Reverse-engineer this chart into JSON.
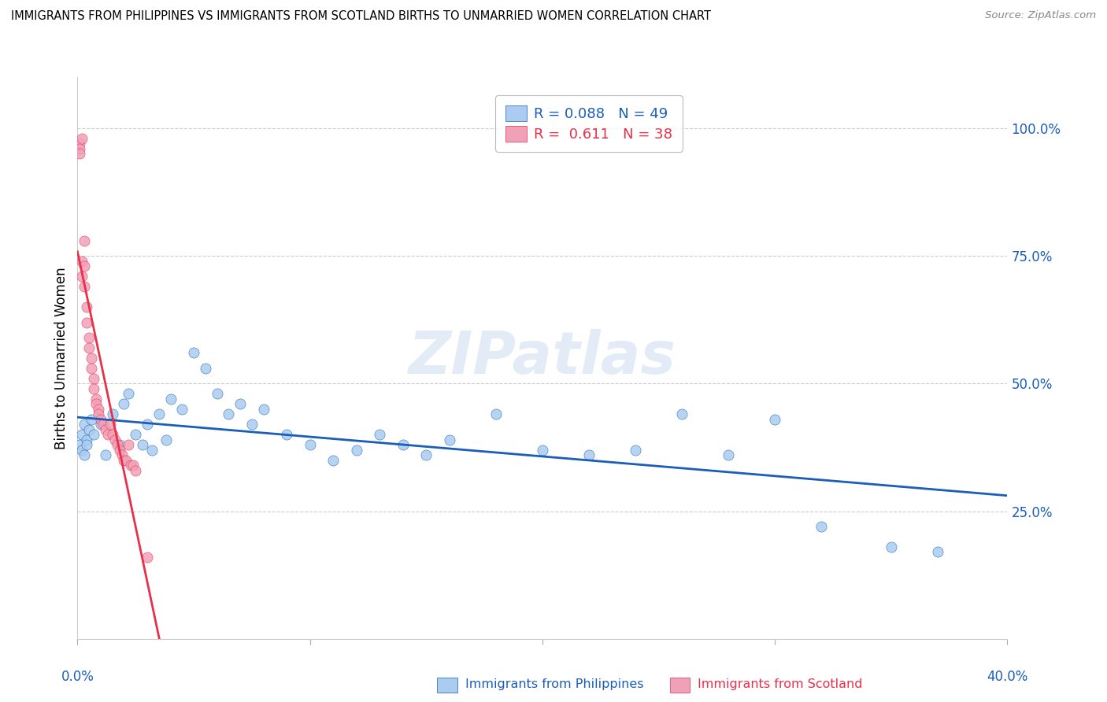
{
  "title": "IMMIGRANTS FROM PHILIPPINES VS IMMIGRANTS FROM SCOTLAND BIRTHS TO UNMARRIED WOMEN CORRELATION CHART",
  "source": "Source: ZipAtlas.com",
  "ylabel": "Births to Unmarried Women",
  "ytick_labels": [
    "100.0%",
    "75.0%",
    "50.0%",
    "25.0%"
  ],
  "ytick_values": [
    1.0,
    0.75,
    0.5,
    0.25
  ],
  "xlim": [
    0.0,
    0.4
  ],
  "ylim": [
    0.0,
    1.1
  ],
  "watermark": "ZIPatlas",
  "color_philippines": "#aaccf0",
  "color_scotland": "#f0a0b8",
  "line_color_philippines": "#1a5eb8",
  "line_color_scotland": "#e8304a",
  "philippines_x": [
    0.001,
    0.002,
    0.002,
    0.003,
    0.003,
    0.004,
    0.004,
    0.005,
    0.006,
    0.007,
    0.01,
    0.012,
    0.015,
    0.018,
    0.02,
    0.022,
    0.025,
    0.028,
    0.03,
    0.032,
    0.035,
    0.038,
    0.04,
    0.045,
    0.05,
    0.055,
    0.06,
    0.065,
    0.07,
    0.075,
    0.08,
    0.09,
    0.1,
    0.11,
    0.12,
    0.13,
    0.14,
    0.15,
    0.16,
    0.18,
    0.2,
    0.22,
    0.24,
    0.26,
    0.28,
    0.3,
    0.32,
    0.35,
    0.37
  ],
  "philippines_y": [
    0.38,
    0.4,
    0.37,
    0.42,
    0.36,
    0.39,
    0.38,
    0.41,
    0.43,
    0.4,
    0.42,
    0.36,
    0.44,
    0.38,
    0.46,
    0.48,
    0.4,
    0.38,
    0.42,
    0.37,
    0.44,
    0.39,
    0.47,
    0.45,
    0.56,
    0.53,
    0.48,
    0.44,
    0.46,
    0.42,
    0.45,
    0.4,
    0.38,
    0.35,
    0.37,
    0.4,
    0.38,
    0.36,
    0.39,
    0.44,
    0.37,
    0.36,
    0.37,
    0.44,
    0.36,
    0.43,
    0.22,
    0.18,
    0.17
  ],
  "scotland_x": [
    0.001,
    0.001,
    0.001,
    0.002,
    0.002,
    0.002,
    0.003,
    0.003,
    0.003,
    0.004,
    0.004,
    0.005,
    0.005,
    0.006,
    0.006,
    0.007,
    0.007,
    0.008,
    0.008,
    0.009,
    0.009,
    0.01,
    0.011,
    0.012,
    0.013,
    0.014,
    0.015,
    0.016,
    0.017,
    0.018,
    0.019,
    0.02,
    0.021,
    0.022,
    0.023,
    0.024,
    0.025,
    0.03
  ],
  "scotland_y": [
    0.97,
    0.96,
    0.95,
    0.98,
    0.74,
    0.71,
    0.78,
    0.73,
    0.69,
    0.65,
    0.62,
    0.59,
    0.57,
    0.55,
    0.53,
    0.51,
    0.49,
    0.47,
    0.46,
    0.45,
    0.44,
    0.43,
    0.42,
    0.41,
    0.4,
    0.42,
    0.4,
    0.39,
    0.38,
    0.37,
    0.36,
    0.35,
    0.35,
    0.38,
    0.34,
    0.34,
    0.33,
    0.16
  ],
  "philippines_R": 0.088,
  "philippines_N": 49,
  "scotland_R": 0.611,
  "scotland_N": 38
}
